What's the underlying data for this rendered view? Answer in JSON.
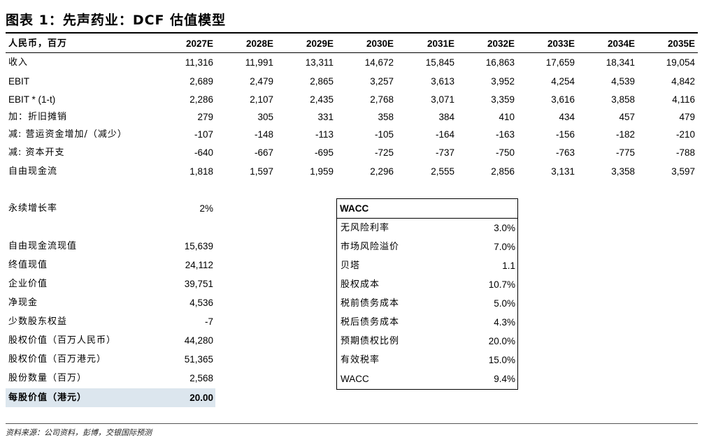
{
  "title": "图表 1：先声药业：DCF 估值模型",
  "header": {
    "label": "人民币，百万",
    "years": [
      "2027E",
      "2028E",
      "2029E",
      "2030E",
      "2031E",
      "2032E",
      "2033E",
      "2034E",
      "2035E"
    ]
  },
  "rows": [
    {
      "label": "收入",
      "values": [
        "11,316",
        "11,991",
        "13,311",
        "14,672",
        "15,845",
        "16,863",
        "17,659",
        "18,341",
        "19,054"
      ]
    },
    {
      "label": "EBIT",
      "values": [
        "2,689",
        "2,479",
        "2,865",
        "3,257",
        "3,613",
        "3,952",
        "4,254",
        "4,539",
        "4,842"
      ]
    },
    {
      "label": "EBIT * (1-t)",
      "values": [
        "2,286",
        "2,107",
        "2,435",
        "2,768",
        "3,071",
        "3,359",
        "3,616",
        "3,858",
        "4,116"
      ]
    },
    {
      "label": "加：折旧摊销",
      "values": [
        "279",
        "305",
        "331",
        "358",
        "384",
        "410",
        "434",
        "457",
        "479"
      ]
    },
    {
      "label": "减: 营运资金增加/（减少）",
      "values": [
        "-107",
        "-148",
        "-113",
        "-105",
        "-164",
        "-163",
        "-156",
        "-182",
        "-210"
      ]
    },
    {
      "label": "减: 资本开支",
      "values": [
        "-640",
        "-667",
        "-695",
        "-725",
        "-737",
        "-750",
        "-763",
        "-775",
        "-788"
      ]
    },
    {
      "label": "自由现金流",
      "values": [
        "1,818",
        "1,597",
        "1,959",
        "2,296",
        "2,555",
        "2,856",
        "3,131",
        "3,358",
        "3,597"
      ]
    }
  ],
  "perpetual": {
    "label": "永续增长率",
    "value": "2%"
  },
  "summary": [
    {
      "label": "自由现金流现值",
      "value": "15,639"
    },
    {
      "label": "终值现值",
      "value": "24,112"
    },
    {
      "label": "企业价值",
      "value": "39,751"
    },
    {
      "label": "净现金",
      "value": "4,536"
    },
    {
      "label": "少数股东权益",
      "value": "-7"
    },
    {
      "label": "股权价值（百万人民币）",
      "value": "44,280"
    },
    {
      "label": "股权价值（百万港元）",
      "value": "51,365"
    },
    {
      "label": "股份数量（百万）",
      "value": "2,568"
    }
  ],
  "per_share": {
    "label": "每股价值（港元）",
    "value": "20.00"
  },
  "wacc": {
    "title": "WACC",
    "rows": [
      {
        "label": "无风险利率",
        "value": "3.0%"
      },
      {
        "label": "市场风险溢价",
        "value": "7.0%"
      },
      {
        "label": "贝塔",
        "value": "1.1"
      },
      {
        "label": "股权成本",
        "value": "10.7%"
      },
      {
        "label": "税前债务成本",
        "value": "5.0%"
      },
      {
        "label": "税后债务成本",
        "value": "4.3%"
      },
      {
        "label": "预期债权比例",
        "value": "20.0%"
      },
      {
        "label": "有效税率",
        "value": "15.0%"
      },
      {
        "label": "WACC",
        "value": "9.4%"
      }
    ]
  },
  "footnote": "资料来源：公司资料，彭博，交银国际预测"
}
